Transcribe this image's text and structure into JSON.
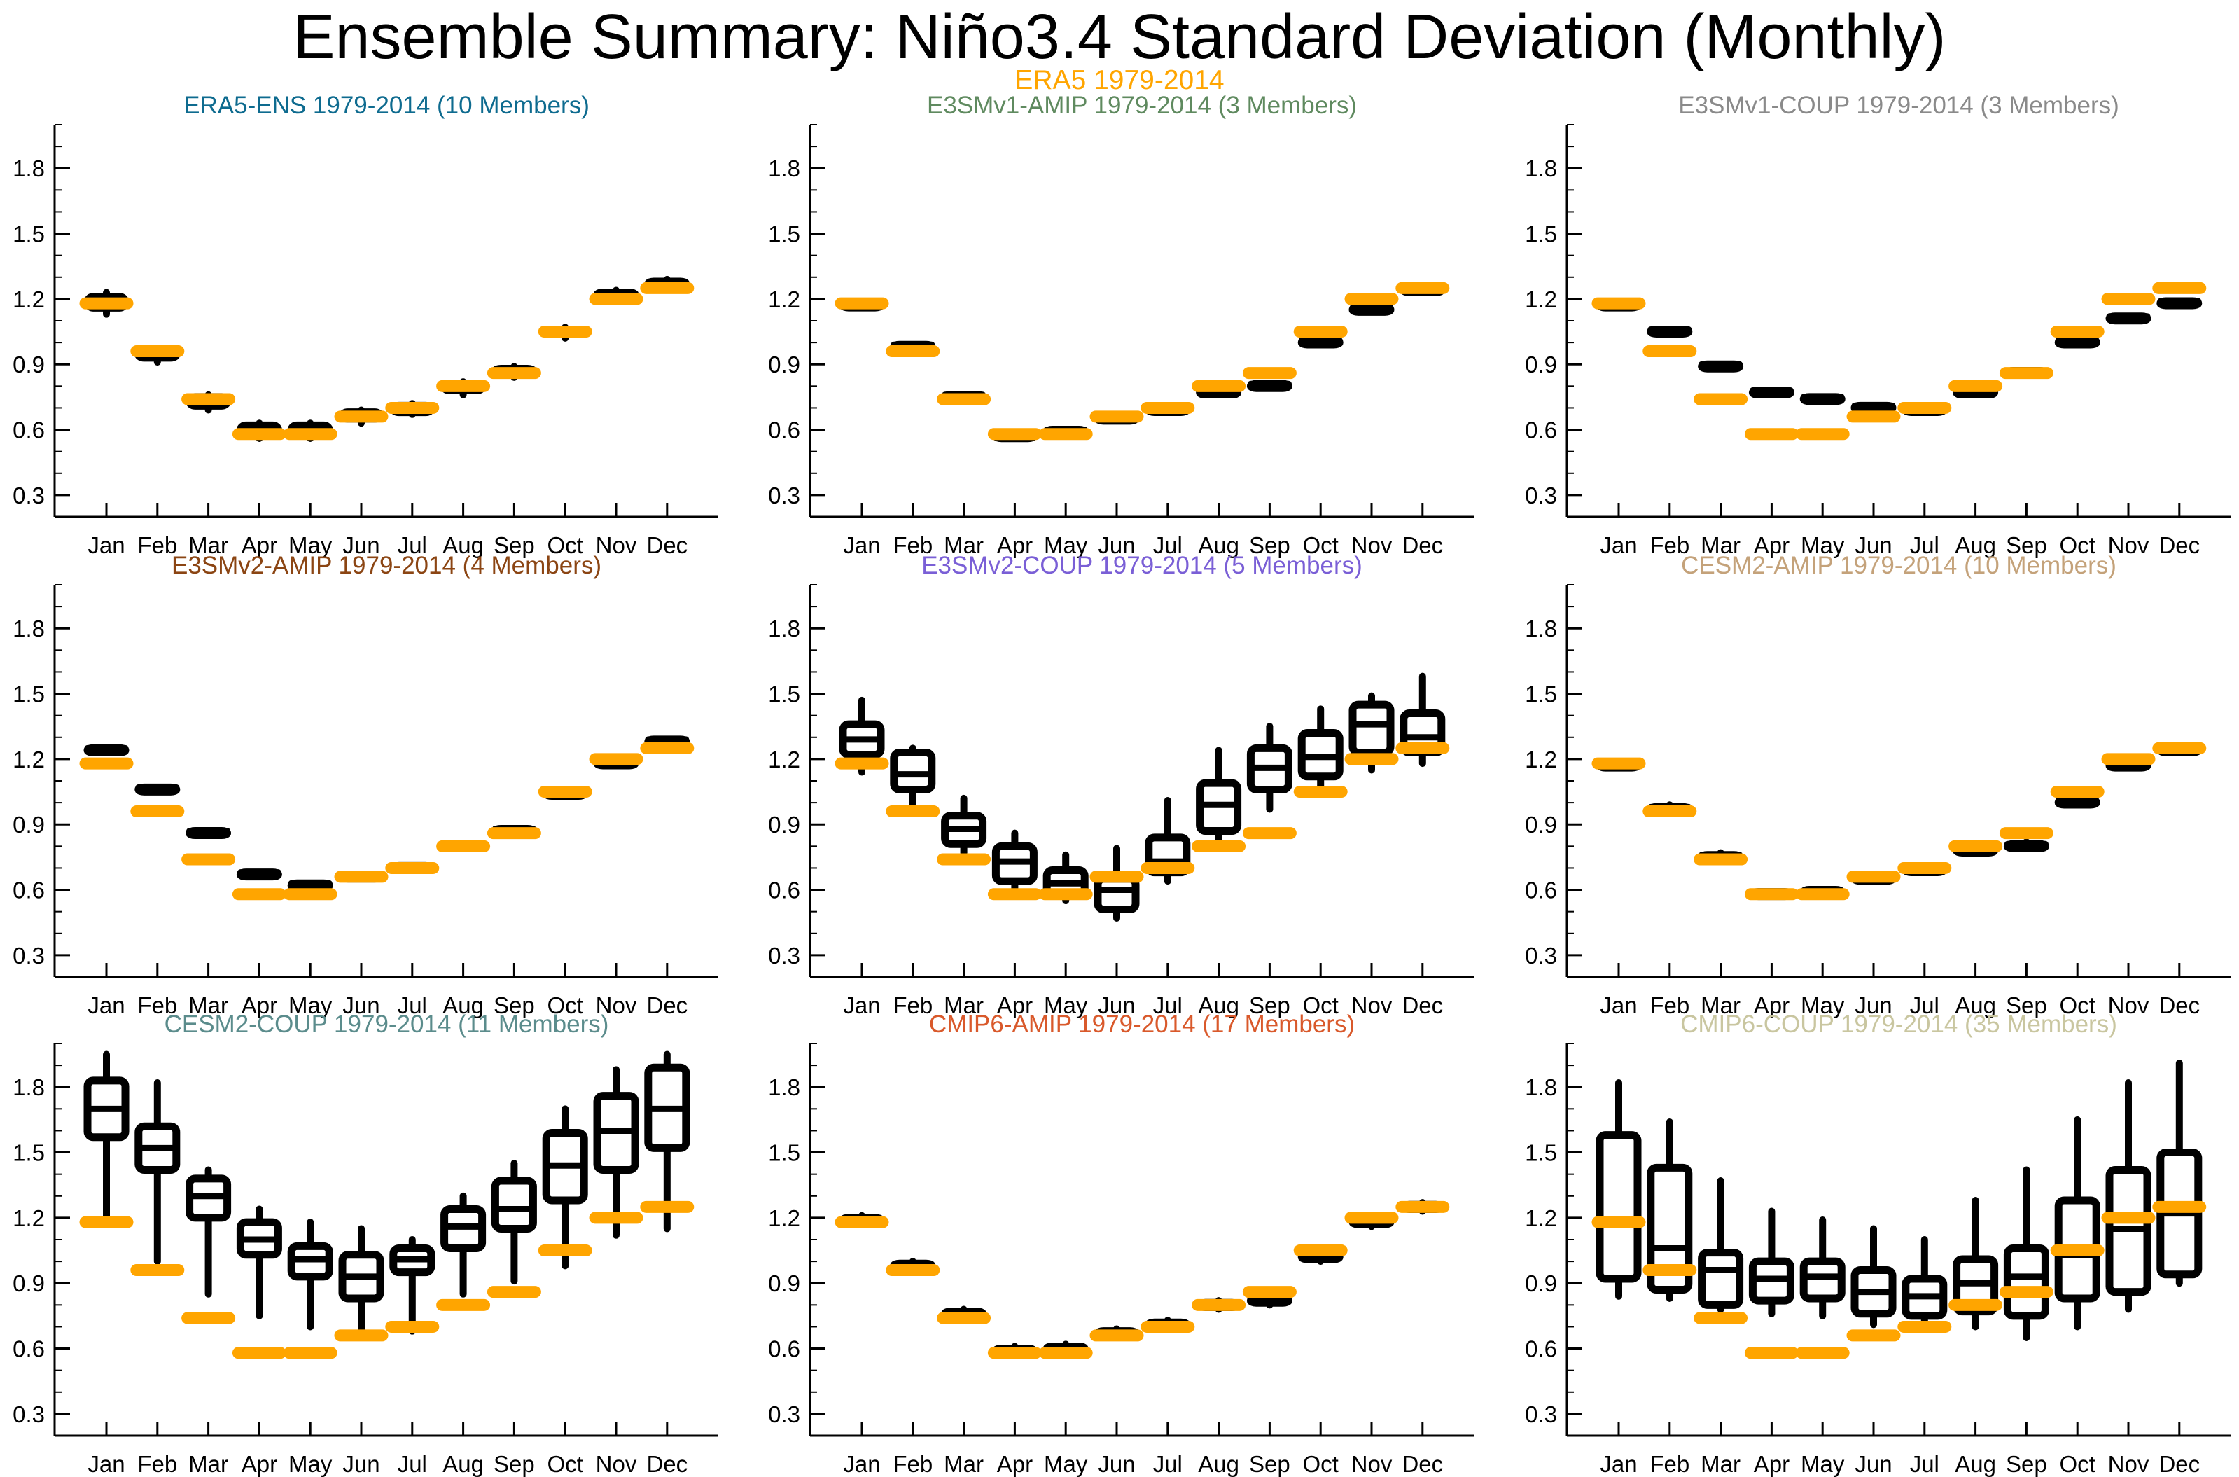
{
  "header": {
    "title": "Ensemble Summary: Niño3.4 Standard Deviation (Monthly)",
    "subtitle": "ERA5 1979-2014",
    "subtitle_color": "#ffa500"
  },
  "colors": {
    "reference": "#ffa500",
    "ensemble": "#000000"
  },
  "chart_data": [
    {
      "type": "box",
      "title": "ERA5-ENS 1979-2014 (10 Members)",
      "title_color": "#0e6b8f",
      "categories": [
        "Jan",
        "Feb",
        "Mar",
        "Apr",
        "May",
        "Jun",
        "Jul",
        "Aug",
        "Sep",
        "Oct",
        "Nov",
        "Dec"
      ],
      "yticks": [
        "0.3",
        "0.6",
        "0.9",
        "1.2",
        "1.5",
        "1.8"
      ],
      "ylim": [
        0.2,
        2.0
      ],
      "reference": [
        1.18,
        0.96,
        0.74,
        0.58,
        0.58,
        0.66,
        0.7,
        0.8,
        0.86,
        1.05,
        1.2,
        1.25
      ],
      "boxes": [
        [
          1.13,
          1.16,
          1.18,
          1.21,
          1.23
        ],
        [
          0.91,
          0.93,
          0.95,
          0.96,
          0.97
        ],
        [
          0.69,
          0.71,
          0.73,
          0.75,
          0.76
        ],
        [
          0.56,
          0.58,
          0.6,
          0.62,
          0.63
        ],
        [
          0.56,
          0.58,
          0.6,
          0.62,
          0.63
        ],
        [
          0.63,
          0.65,
          0.66,
          0.68,
          0.69
        ],
        [
          0.67,
          0.68,
          0.7,
          0.71,
          0.72
        ],
        [
          0.76,
          0.78,
          0.8,
          0.81,
          0.82
        ],
        [
          0.84,
          0.86,
          0.87,
          0.88,
          0.89
        ],
        [
          1.02,
          1.04,
          1.05,
          1.06,
          1.07
        ],
        [
          1.2,
          1.21,
          1.22,
          1.23,
          1.24
        ],
        [
          1.25,
          1.26,
          1.27,
          1.28,
          1.29
        ]
      ]
    },
    {
      "type": "box",
      "title": "E3SMv1-AMIP 1979-2014 (3 Members)",
      "title_color": "#5f8a5f",
      "categories": [
        "Jan",
        "Feb",
        "Mar",
        "Apr",
        "May",
        "Jun",
        "Jul",
        "Aug",
        "Sep",
        "Oct",
        "Nov",
        "Dec"
      ],
      "yticks": [
        "0.3",
        "0.6",
        "0.9",
        "1.2",
        "1.5",
        "1.8"
      ],
      "ylim": [
        0.2,
        2.0
      ],
      "reference": [
        1.18,
        0.96,
        0.74,
        0.58,
        0.58,
        0.66,
        0.7,
        0.8,
        0.86,
        1.05,
        1.2,
        1.25
      ],
      "boxes": [
        [
          1.18,
          1.18,
          1.18,
          1.18,
          1.18
        ],
        [
          0.99,
          0.99,
          0.99,
          0.99,
          0.99
        ],
        [
          0.76,
          0.76,
          0.76,
          0.76,
          0.76
        ],
        [
          0.58,
          0.58,
          0.58,
          0.58,
          0.58
        ],
        [
          0.6,
          0.6,
          0.6,
          0.6,
          0.6
        ],
        [
          0.66,
          0.66,
          0.66,
          0.66,
          0.66
        ],
        [
          0.7,
          0.7,
          0.7,
          0.7,
          0.7
        ],
        [
          0.78,
          0.78,
          0.78,
          0.78,
          0.78
        ],
        [
          0.81,
          0.81,
          0.81,
          0.81,
          0.81
        ],
        [
          1.01,
          1.01,
          1.01,
          1.01,
          1.01
        ],
        [
          1.16,
          1.16,
          1.16,
          1.16,
          1.16
        ],
        [
          1.25,
          1.25,
          1.25,
          1.25,
          1.25
        ]
      ]
    },
    {
      "type": "box",
      "title": "E3SMv1-COUP 1979-2014 (3 Members)",
      "title_color": "#8a8a8a",
      "categories": [
        "Jan",
        "Feb",
        "Mar",
        "Apr",
        "May",
        "Jun",
        "Jul",
        "Aug",
        "Sep",
        "Oct",
        "Nov",
        "Dec"
      ],
      "yticks": [
        "0.3",
        "0.6",
        "0.9",
        "1.2",
        "1.5",
        "1.8"
      ],
      "ylim": [
        0.2,
        2.0
      ],
      "reference": [
        1.18,
        0.96,
        0.74,
        0.58,
        0.58,
        0.66,
        0.7,
        0.8,
        0.86,
        1.05,
        1.2,
        1.25
      ],
      "boxes": [
        [
          1.18,
          1.18,
          1.18,
          1.18,
          1.18
        ],
        [
          1.06,
          1.06,
          1.06,
          1.06,
          1.06
        ],
        [
          0.9,
          0.9,
          0.9,
          0.9,
          0.9
        ],
        [
          0.78,
          0.78,
          0.78,
          0.78,
          0.78
        ],
        [
          0.75,
          0.75,
          0.75,
          0.75,
          0.75
        ],
        [
          0.71,
          0.71,
          0.71,
          0.71,
          0.71
        ],
        [
          0.7,
          0.7,
          0.7,
          0.7,
          0.7
        ],
        [
          0.78,
          0.78,
          0.78,
          0.78,
          0.78
        ],
        [
          0.87,
          0.87,
          0.87,
          0.87,
          0.87
        ],
        [
          1.01,
          1.01,
          1.01,
          1.01,
          1.01
        ],
        [
          1.12,
          1.12,
          1.12,
          1.12,
          1.12
        ],
        [
          1.19,
          1.19,
          1.19,
          1.19,
          1.19
        ]
      ]
    },
    {
      "type": "box",
      "title": "E3SMv2-AMIP 1979-2014 (4 Members)",
      "title_color": "#8b4513",
      "categories": [
        "Jan",
        "Feb",
        "Mar",
        "Apr",
        "May",
        "Jun",
        "Jul",
        "Aug",
        "Sep",
        "Oct",
        "Nov",
        "Dec"
      ],
      "yticks": [
        "0.3",
        "0.6",
        "0.9",
        "1.2",
        "1.5",
        "1.8"
      ],
      "ylim": [
        0.2,
        2.0
      ],
      "reference": [
        1.18,
        0.96,
        0.74,
        0.58,
        0.58,
        0.66,
        0.7,
        0.8,
        0.86,
        1.05,
        1.2,
        1.25
      ],
      "boxes": [
        [
          1.25,
          1.25,
          1.25,
          1.25,
          1.25
        ],
        [
          1.07,
          1.07,
          1.07,
          1.07,
          1.07
        ],
        [
          0.87,
          0.87,
          0.87,
          0.87,
          0.87
        ],
        [
          0.68,
          0.68,
          0.68,
          0.68,
          0.68
        ],
        [
          0.63,
          0.63,
          0.63,
          0.63,
          0.63
        ],
        [
          0.67,
          0.67,
          0.67,
          0.67,
          0.67
        ],
        [
          0.71,
          0.71,
          0.71,
          0.71,
          0.71
        ],
        [
          0.81,
          0.81,
          0.81,
          0.81,
          0.81
        ],
        [
          0.88,
          0.88,
          0.88,
          0.88,
          0.88
        ],
        [
          1.05,
          1.05,
          1.05,
          1.05,
          1.05
        ],
        [
          1.19,
          1.19,
          1.19,
          1.19,
          1.19
        ],
        [
          1.29,
          1.29,
          1.29,
          1.29,
          1.29
        ]
      ]
    },
    {
      "type": "box",
      "title": "E3SMv2-COUP 1979-2014 (5 Members)",
      "title_color": "#7a5fd6",
      "categories": [
        "Jan",
        "Feb",
        "Mar",
        "Apr",
        "May",
        "Jun",
        "Jul",
        "Aug",
        "Sep",
        "Oct",
        "Nov",
        "Dec"
      ],
      "yticks": [
        "0.3",
        "0.6",
        "0.9",
        "1.2",
        "1.5",
        "1.8"
      ],
      "ylim": [
        0.2,
        2.0
      ],
      "reference": [
        1.18,
        0.96,
        0.74,
        0.58,
        0.58,
        0.66,
        0.7,
        0.8,
        0.86,
        1.05,
        1.2,
        1.25
      ],
      "boxes": [
        [
          1.14,
          1.22,
          1.29,
          1.36,
          1.47
        ],
        [
          0.98,
          1.06,
          1.13,
          1.23,
          1.25
        ],
        [
          0.77,
          0.81,
          0.88,
          0.94,
          1.02
        ],
        [
          0.59,
          0.64,
          0.73,
          0.8,
          0.86
        ],
        [
          0.55,
          0.58,
          0.63,
          0.69,
          0.76
        ],
        [
          0.47,
          0.51,
          0.6,
          0.65,
          0.79
        ],
        [
          0.64,
          0.68,
          0.73,
          0.84,
          1.01
        ],
        [
          0.8,
          0.87,
          0.99,
          1.09,
          1.24
        ],
        [
          0.97,
          1.06,
          1.16,
          1.25,
          1.35
        ],
        [
          1.04,
          1.12,
          1.21,
          1.32,
          1.43
        ],
        [
          1.15,
          1.23,
          1.36,
          1.45,
          1.49
        ],
        [
          1.18,
          1.23,
          1.3,
          1.41,
          1.58
        ]
      ]
    },
    {
      "type": "box",
      "title": "CESM2-AMIP 1979-2014 (10 Members)",
      "title_color": "#c4a27a",
      "categories": [
        "Jan",
        "Feb",
        "Mar",
        "Apr",
        "May",
        "Jun",
        "Jul",
        "Aug",
        "Sep",
        "Oct",
        "Nov",
        "Dec"
      ],
      "yticks": [
        "0.3",
        "0.6",
        "0.9",
        "1.2",
        "1.5",
        "1.8"
      ],
      "ylim": [
        0.2,
        2.0
      ],
      "reference": [
        1.18,
        0.96,
        0.74,
        0.58,
        0.58,
        0.66,
        0.7,
        0.8,
        0.86,
        1.05,
        1.2,
        1.25
      ],
      "boxes": [
        [
          1.18,
          1.18,
          1.18,
          1.18,
          1.18
        ],
        [
          0.97,
          0.98,
          0.98,
          0.98,
          0.99
        ],
        [
          0.75,
          0.76,
          0.76,
          0.76,
          0.77
        ],
        [
          0.58,
          0.58,
          0.59,
          0.59,
          0.59
        ],
        [
          0.59,
          0.59,
          0.59,
          0.6,
          0.6
        ],
        [
          0.66,
          0.66,
          0.66,
          0.66,
          0.66
        ],
        [
          0.7,
          0.7,
          0.7,
          0.7,
          0.7
        ],
        [
          0.79,
          0.79,
          0.79,
          0.79,
          0.8
        ],
        [
          0.8,
          0.81,
          0.81,
          0.81,
          0.82
        ],
        [
          0.99,
          1.0,
          1.01,
          1.01,
          1.02
        ],
        [
          1.16,
          1.17,
          1.17,
          1.18,
          1.18
        ],
        [
          1.25,
          1.25,
          1.25,
          1.25,
          1.25
        ]
      ]
    },
    {
      "type": "box",
      "title": "CESM2-COUP 1979-2014 (11 Members)",
      "title_color": "#5b8c8c",
      "categories": [
        "Jan",
        "Feb",
        "Mar",
        "Apr",
        "May",
        "Jun",
        "Jul",
        "Aug",
        "Sep",
        "Oct",
        "Nov",
        "Dec"
      ],
      "yticks": [
        "0.3",
        "0.6",
        "0.9",
        "1.2",
        "1.5",
        "1.8"
      ],
      "ylim": [
        0.2,
        2.0
      ],
      "reference": [
        1.18,
        0.96,
        0.74,
        0.58,
        0.58,
        0.66,
        0.7,
        0.8,
        0.86,
        1.05,
        1.2,
        1.25
      ],
      "boxes": [
        [
          1.18,
          1.57,
          1.7,
          1.83,
          1.95
        ],
        [
          1.0,
          1.42,
          1.52,
          1.62,
          1.82
        ],
        [
          0.85,
          1.2,
          1.3,
          1.38,
          1.42
        ],
        [
          0.75,
          1.03,
          1.1,
          1.18,
          1.24
        ],
        [
          0.7,
          0.93,
          1.01,
          1.07,
          1.18
        ],
        [
          0.67,
          0.83,
          0.93,
          1.03,
          1.15
        ],
        [
          0.68,
          0.95,
          1.01,
          1.06,
          1.1
        ],
        [
          0.85,
          1.06,
          1.16,
          1.24,
          1.3
        ],
        [
          0.91,
          1.15,
          1.24,
          1.37,
          1.45
        ],
        [
          0.98,
          1.28,
          1.44,
          1.59,
          1.7
        ],
        [
          1.12,
          1.42,
          1.6,
          1.76,
          1.88
        ],
        [
          1.15,
          1.52,
          1.7,
          1.89,
          1.95
        ]
      ]
    },
    {
      "type": "box",
      "title": "CMIP6-AMIP 1979-2014 (17 Members)",
      "title_color": "#d9592b",
      "categories": [
        "Jan",
        "Feb",
        "Mar",
        "Apr",
        "May",
        "Jun",
        "Jul",
        "Aug",
        "Sep",
        "Oct",
        "Nov",
        "Dec"
      ],
      "yticks": [
        "0.3",
        "0.6",
        "0.9",
        "1.2",
        "1.5",
        "1.8"
      ],
      "ylim": [
        0.2,
        2.0
      ],
      "reference": [
        1.18,
        0.96,
        0.74,
        0.58,
        0.58,
        0.66,
        0.7,
        0.8,
        0.86,
        1.05,
        1.2,
        1.25
      ],
      "boxes": [
        [
          1.17,
          1.18,
          1.19,
          1.2,
          1.21
        ],
        [
          0.95,
          0.97,
          0.98,
          0.99,
          1.0
        ],
        [
          0.73,
          0.75,
          0.76,
          0.77,
          0.78
        ],
        [
          0.58,
          0.59,
          0.59,
          0.6,
          0.61
        ],
        [
          0.58,
          0.59,
          0.6,
          0.61,
          0.62
        ],
        [
          0.65,
          0.66,
          0.67,
          0.68,
          0.69
        ],
        [
          0.69,
          0.7,
          0.71,
          0.72,
          0.73
        ],
        [
          0.78,
          0.79,
          0.8,
          0.81,
          0.82
        ],
        [
          0.8,
          0.81,
          0.82,
          0.83,
          0.85
        ],
        [
          1.0,
          1.01,
          1.02,
          1.03,
          1.04
        ],
        [
          1.16,
          1.17,
          1.18,
          1.19,
          1.2
        ],
        [
          1.23,
          1.24,
          1.25,
          1.26,
          1.27
        ]
      ]
    },
    {
      "type": "box",
      "title": "CMIP6-COUP 1979-2014 (35 Members)",
      "title_color": "#c9c6a0",
      "categories": [
        "Jan",
        "Feb",
        "Mar",
        "Apr",
        "May",
        "Jun",
        "Jul",
        "Aug",
        "Sep",
        "Oct",
        "Nov",
        "Dec"
      ],
      "yticks": [
        "0.3",
        "0.6",
        "0.9",
        "1.2",
        "1.5",
        "1.8"
      ],
      "ylim": [
        0.2,
        2.0
      ],
      "reference": [
        1.18,
        0.96,
        0.74,
        0.58,
        0.58,
        0.66,
        0.7,
        0.8,
        0.86,
        1.05,
        1.2,
        1.25
      ],
      "boxes": [
        [
          0.84,
          0.92,
          1.18,
          1.58,
          1.82
        ],
        [
          0.83,
          0.87,
          1.06,
          1.43,
          1.64
        ],
        [
          0.78,
          0.8,
          0.96,
          1.04,
          1.37
        ],
        [
          0.76,
          0.82,
          0.92,
          1.0,
          1.23
        ],
        [
          0.75,
          0.83,
          0.93,
          1.0,
          1.19
        ],
        [
          0.71,
          0.76,
          0.86,
          0.96,
          1.15
        ],
        [
          0.69,
          0.75,
          0.84,
          0.92,
          1.1
        ],
        [
          0.7,
          0.77,
          0.9,
          1.01,
          1.28
        ],
        [
          0.65,
          0.75,
          0.93,
          1.06,
          1.42
        ],
        [
          0.7,
          0.83,
          1.03,
          1.28,
          1.65
        ],
        [
          0.78,
          0.86,
          1.15,
          1.42,
          1.82
        ],
        [
          0.9,
          0.94,
          1.22,
          1.5,
          1.91
        ]
      ]
    }
  ]
}
